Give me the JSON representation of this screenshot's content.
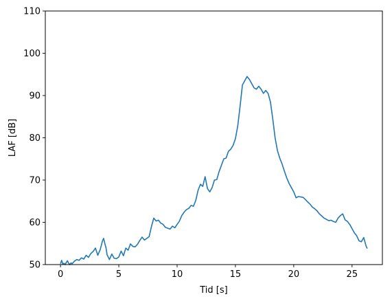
{
  "chart_data": {
    "type": "line",
    "title": "",
    "xlabel": "Tid [s]",
    "ylabel": "LAF [dB]",
    "xlim": [
      -1.3,
      27.6
    ],
    "ylim": [
      50,
      110
    ],
    "xticks": [
      0,
      5,
      10,
      15,
      20,
      25
    ],
    "yticks": [
      50,
      60,
      70,
      80,
      90,
      100,
      110
    ],
    "grid": false,
    "legend": "none",
    "series": [
      {
        "color": "#1f77b4",
        "x": [
          0,
          0.1,
          0.2,
          0.3,
          0.4,
          0.5,
          0.6,
          0.7,
          0.8,
          0.9,
          1.0,
          1.2,
          1.4,
          1.6,
          1.8,
          2.0,
          2.2,
          2.4,
          2.6,
          2.8,
          3.0,
          3.2,
          3.4,
          3.5,
          3.6,
          3.7,
          3.8,
          3.9,
          4.0,
          4.2,
          4.4,
          4.6,
          4.8,
          5.0,
          5.2,
          5.4,
          5.6,
          5.8,
          6.0,
          6.2,
          6.4,
          6.6,
          6.8,
          7.0,
          7.2,
          7.4,
          7.6,
          7.8,
          8.0,
          8.2,
          8.4,
          8.6,
          8.8,
          9.0,
          9.2,
          9.4,
          9.6,
          9.8,
          10.0,
          10.2,
          10.4,
          10.6,
          10.8,
          11.0,
          11.2,
          11.4,
          11.6,
          11.8,
          12.0,
          12.2,
          12.4,
          12.6,
          12.8,
          13.0,
          13.2,
          13.4,
          13.6,
          13.8,
          14.0,
          14.2,
          14.4,
          14.6,
          14.8,
          15.0,
          15.1,
          15.2,
          15.4,
          15.6,
          15.8,
          16.0,
          16.2,
          16.4,
          16.6,
          16.8,
          17.0,
          17.2,
          17.4,
          17.6,
          17.8,
          18.0,
          18.2,
          18.4,
          18.6,
          18.8,
          19.0,
          19.2,
          19.4,
          19.6,
          19.8,
          20.0,
          20.2,
          20.4,
          20.6,
          20.8,
          21.0,
          21.2,
          21.4,
          21.6,
          21.8,
          22.0,
          22.2,
          22.4,
          22.6,
          22.8,
          23.0,
          23.2,
          23.4,
          23.6,
          23.8,
          24.0,
          24.2,
          24.4,
          24.6,
          24.8,
          25.0,
          25.2,
          25.4,
          25.6,
          25.8,
          26.0,
          26.2,
          26.3
        ],
        "y": [
          50.2,
          51.0,
          50.1,
          50.3,
          50.0,
          50.5,
          50.9,
          50.3,
          50.0,
          50.4,
          50.2,
          50.8,
          51.2,
          51.0,
          51.6,
          51.3,
          52.2,
          51.7,
          52.6,
          53.1,
          53.9,
          52.2,
          53.5,
          54.5,
          55.6,
          56.2,
          55.0,
          54.0,
          52.3,
          51.2,
          52.5,
          51.5,
          51.4,
          51.8,
          53.2,
          52.1,
          53.9,
          53.4,
          54.9,
          54.3,
          54.2,
          54.8,
          55.7,
          56.5,
          55.8,
          56.2,
          56.6,
          59.0,
          61.0,
          60.3,
          60.5,
          59.8,
          59.5,
          58.8,
          58.6,
          58.4,
          59.1,
          58.7,
          59.5,
          60.3,
          61.6,
          62.4,
          63.0,
          63.3,
          64.0,
          63.8,
          65.2,
          67.6,
          69.0,
          68.5,
          70.8,
          68.0,
          67.2,
          68.2,
          70.0,
          70.1,
          72.0,
          73.5,
          75.0,
          75.2,
          76.8,
          77.3,
          78.2,
          79.8,
          81.3,
          82.8,
          87.5,
          92.5,
          93.5,
          94.5,
          93.8,
          92.8,
          91.8,
          91.5,
          92.2,
          91.5,
          90.5,
          91.2,
          90.5,
          88.5,
          84.5,
          80.0,
          77.0,
          75.2,
          73.8,
          72.1,
          70.5,
          69.2,
          68.2,
          67.2,
          65.8,
          66.1,
          66.0,
          65.9,
          65.4,
          64.8,
          64.3,
          63.6,
          63.2,
          62.7,
          62.0,
          61.5,
          61.0,
          60.7,
          60.4,
          60.5,
          60.2,
          60.0,
          61.0,
          61.6,
          62.0,
          60.6,
          60.2,
          59.5,
          58.5,
          57.5,
          56.8,
          55.6,
          55.4,
          56.4,
          54.4,
          53.8
        ]
      }
    ]
  }
}
